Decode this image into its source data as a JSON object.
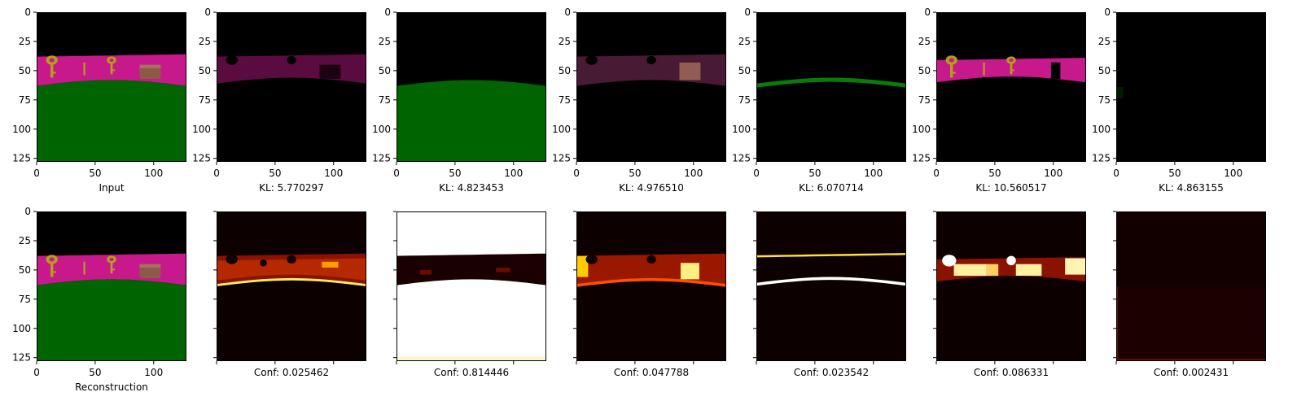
{
  "chart_data": [
    {
      "type": "image_grid",
      "rows": [
        {
          "panels": [
            {
              "caption": "Input",
              "kind": "rgb",
              "axis_labels": true
            },
            {
              "caption": "KL: 5.770297",
              "kind": "rgb",
              "axis_labels": true
            },
            {
              "caption": "KL: 4.823453",
              "kind": "rgb",
              "axis_labels": true
            },
            {
              "caption": "KL: 4.976510",
              "kind": "rgb",
              "axis_labels": true
            },
            {
              "caption": "KL: 6.070714",
              "kind": "rgb",
              "axis_labels": true
            },
            {
              "caption": "KL: 10.560517",
              "kind": "rgb",
              "axis_labels": true
            },
            {
              "caption": "KL: 4.863155",
              "kind": "rgb",
              "axis_labels": true
            }
          ]
        },
        {
          "panels": [
            {
              "caption": "Reconstruction",
              "kind": "rgb",
              "axis_labels": true
            },
            {
              "caption": "Conf: 0.025462",
              "kind": "heatmap",
              "axis_labels": false
            },
            {
              "caption": "Conf: 0.814446",
              "kind": "heatmap",
              "axis_labels": false
            },
            {
              "caption": "Conf: 0.047788",
              "kind": "heatmap",
              "axis_labels": false
            },
            {
              "caption": "Conf: 0.023542",
              "kind": "heatmap",
              "axis_labels": false
            },
            {
              "caption": "Conf: 0.086331",
              "kind": "heatmap",
              "axis_labels": false
            },
            {
              "caption": "Conf: 0.002431",
              "kind": "heatmap",
              "axis_labels": false
            }
          ]
        }
      ],
      "xlim": [
        0,
        128
      ],
      "ylim": [
        128,
        0
      ],
      "x_ticks": [
        "0",
        "50",
        "100"
      ],
      "y_ticks": [
        "0",
        "25",
        "50",
        "75",
        "100",
        "125"
      ],
      "x_tick_values": [
        0,
        50,
        100
      ],
      "y_tick_values": [
        0,
        25,
        50,
        75,
        100,
        125
      ],
      "colormap": "hot",
      "colors": {
        "sky": "#000000",
        "wall": "#c8198c",
        "ground": "#006400",
        "key": "#b4a014",
        "box": "#8c5a46"
      }
    }
  ]
}
